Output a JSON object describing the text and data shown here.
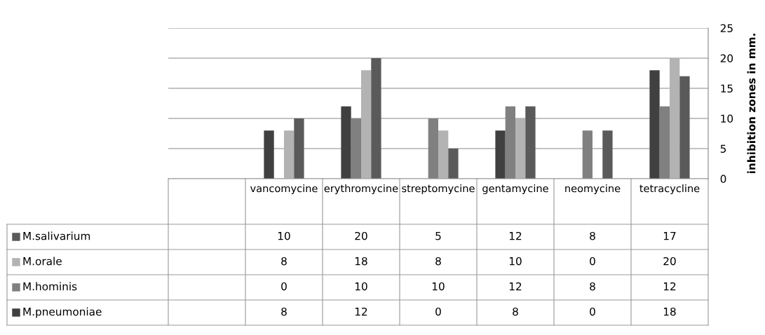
{
  "chart_data": {
    "type": "bar",
    "categories": [
      null,
      "vancomycine",
      "erythromycine",
      "streptomycine",
      "gentamycine",
      "neomycine",
      "tetracycline"
    ],
    "series": [
      {
        "name": "M.pneumoniae",
        "color": "#404040",
        "values": [
          null,
          8,
          12,
          0,
          8,
          0,
          18
        ]
      },
      {
        "name": "M.hominis",
        "color": "#808080",
        "values": [
          null,
          0,
          10,
          10,
          12,
          8,
          12
        ]
      },
      {
        "name": "M.orale",
        "color": "#b3b3b3",
        "values": [
          null,
          8,
          18,
          8,
          10,
          0,
          20
        ]
      },
      {
        "name": "M.salivarium",
        "color": "#5a5a5a",
        "values": [
          null,
          10,
          20,
          5,
          12,
          8,
          17
        ]
      }
    ],
    "ylabel": "inhibition zones in mm.",
    "ylim": [
      0,
      25
    ],
    "yticks": [
      0,
      5,
      10,
      15,
      20,
      25
    ],
    "grid": "y",
    "legend": "left",
    "data_labels": true
  }
}
